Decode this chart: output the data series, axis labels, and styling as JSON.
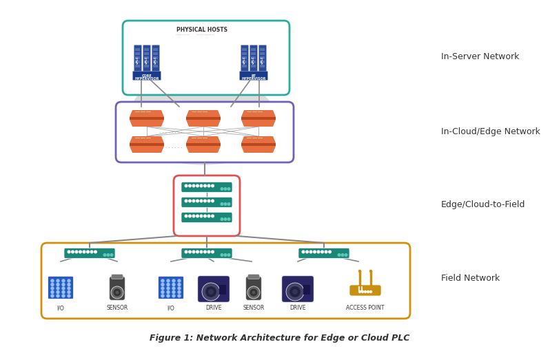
{
  "title": "Figure 1: Network Architecture for Edge or Cloud PLC",
  "labels": {
    "in_server": "In-Server Network",
    "in_cloud": "In-Cloud/Edge Network",
    "edge_field": "Edge/Cloud-to-Field",
    "field": "Field Network"
  },
  "colors": {
    "cloud_bg": "#dcdcdc",
    "server_box": "#2aab9e",
    "cloud_edge_box": "#7060b8",
    "edge_field_box": "#e05050",
    "field_box": "#d4900a",
    "teal_switch": "#1a8878",
    "orange_switch": "#e87040",
    "blue_server": "#2a4a9a",
    "purple_device": "#2a2565",
    "blue_io": "#2a5ab8",
    "dark_sensor": "#444444",
    "yellow_ap": "#c89010",
    "line_color": "#888888",
    "white": "#ffffff",
    "text_dark": "#333333"
  },
  "layout": {
    "fig_w": 8.12,
    "fig_h": 5.13,
    "dpi": 100
  }
}
